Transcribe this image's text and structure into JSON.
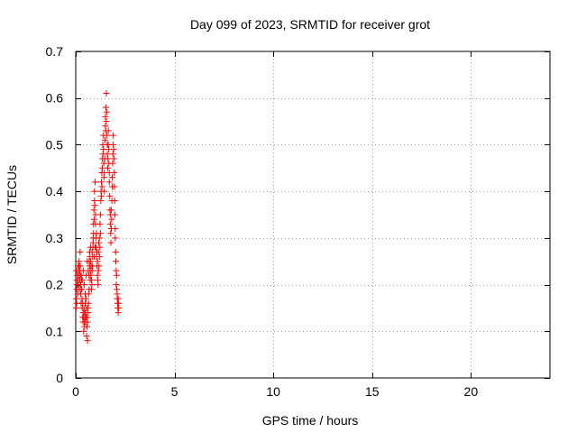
{
  "chart_data": {
    "type": "scatter",
    "title": "Day 099 of 2023, SRMTID for receiver grot",
    "xlabel": "GPS time / hours",
    "ylabel": "SRMTID / TECUs",
    "xlim": [
      0,
      24
    ],
    "ylim": [
      0,
      0.7
    ],
    "xticks": [
      0,
      5,
      10,
      15,
      20
    ],
    "yticks": [
      0,
      0.1,
      0.2,
      0.3,
      0.4,
      0.5,
      0.6,
      0.7
    ],
    "xtick_labels": [
      "0",
      "5",
      "10",
      "15",
      "20"
    ],
    "ytick_labels": [
      "0",
      "0.1",
      "0.2",
      "0.3",
      "0.4",
      "0.5",
      "0.6",
      "0.7"
    ],
    "grid": true,
    "marker": "plus",
    "color": "#ff0000",
    "series": [
      {
        "name": "SRMTID",
        "x": [
          0.02,
          0.03,
          0.05,
          0.05,
          0.07,
          0.08,
          0.1,
          0.1,
          0.12,
          0.13,
          0.15,
          0.15,
          0.17,
          0.18,
          0.2,
          0.2,
          0.22,
          0.23,
          0.25,
          0.25,
          0.27,
          0.28,
          0.3,
          0.3,
          0.32,
          0.33,
          0.35,
          0.35,
          0.37,
          0.38,
          0.4,
          0.4,
          0.42,
          0.43,
          0.45,
          0.45,
          0.47,
          0.48,
          0.5,
          0.5,
          0.52,
          0.53,
          0.55,
          0.55,
          0.57,
          0.58,
          0.6,
          0.6,
          0.62,
          0.63,
          0.65,
          0.65,
          0.67,
          0.68,
          0.7,
          0.7,
          0.72,
          0.73,
          0.75,
          0.75,
          0.77,
          0.78,
          0.8,
          0.8,
          0.82,
          0.83,
          0.85,
          0.85,
          0.87,
          0.88,
          0.9,
          0.9,
          0.92,
          0.93,
          0.95,
          0.95,
          0.97,
          0.98,
          1.0,
          1.0,
          1.02,
          1.03,
          1.05,
          1.05,
          1.07,
          1.08,
          1.1,
          1.1,
          1.12,
          1.13,
          1.15,
          1.15,
          1.17,
          1.18,
          1.2,
          1.2,
          1.22,
          1.23,
          1.25,
          1.25,
          1.27,
          1.28,
          1.3,
          1.3,
          1.32,
          1.33,
          1.35,
          1.35,
          1.37,
          1.38,
          1.4,
          1.4,
          1.42,
          1.43,
          1.45,
          1.45,
          1.47,
          1.48,
          1.5,
          1.5,
          1.52,
          1.53,
          1.55,
          1.55,
          1.57,
          1.58,
          1.6,
          1.6,
          1.62,
          1.63,
          1.65,
          1.65,
          1.67,
          1.68,
          1.7,
          1.7,
          1.72,
          1.73,
          1.75,
          1.75,
          1.77,
          1.78,
          1.8,
          1.8,
          1.82,
          1.83,
          1.85,
          1.85,
          1.87,
          1.88,
          1.9,
          1.9,
          1.92,
          1.93,
          1.95,
          1.95,
          1.97,
          1.98,
          2.0,
          2.0,
          2.02,
          2.03,
          2.05,
          2.05,
          2.07,
          2.08,
          2.1,
          2.1,
          2.12,
          2.13,
          2.15,
          2.15,
          2.17,
          2.18,
          0.03,
          0.08,
          0.13,
          0.18,
          0.23,
          0.28,
          0.33,
          0.38,
          0.43,
          0.48,
          0.53,
          0.58,
          0.63,
          0.68,
          0.73,
          0.78,
          0.83,
          0.88,
          0.93,
          0.98
        ],
        "y": [
          0.15,
          0.17,
          0.19,
          0.16,
          0.2,
          0.22,
          0.21,
          0.18,
          0.24,
          0.23,
          0.2,
          0.22,
          0.25,
          0.19,
          0.21,
          0.23,
          0.27,
          0.24,
          0.18,
          0.2,
          0.16,
          0.22,
          0.19,
          0.21,
          0.17,
          0.15,
          0.13,
          0.16,
          0.12,
          0.14,
          0.1,
          0.13,
          0.15,
          0.12,
          0.14,
          0.11,
          0.13,
          0.16,
          0.12,
          0.14,
          0.17,
          0.13,
          0.15,
          0.09,
          0.11,
          0.13,
          0.08,
          0.12,
          0.15,
          0.14,
          0.18,
          0.16,
          0.22,
          0.25,
          0.27,
          0.24,
          0.26,
          0.23,
          0.28,
          0.25,
          0.22,
          0.24,
          0.21,
          0.19,
          0.2,
          0.23,
          0.26,
          0.24,
          0.28,
          0.3,
          0.33,
          0.31,
          0.36,
          0.34,
          0.38,
          0.4,
          0.37,
          0.42,
          0.35,
          0.33,
          0.3,
          0.28,
          0.26,
          0.31,
          0.27,
          0.24,
          0.22,
          0.25,
          0.21,
          0.2,
          0.23,
          0.27,
          0.29,
          0.24,
          0.26,
          0.3,
          0.28,
          0.33,
          0.35,
          0.31,
          0.38,
          0.4,
          0.42,
          0.39,
          0.44,
          0.41,
          0.47,
          0.45,
          0.5,
          0.48,
          0.52,
          0.49,
          0.46,
          0.43,
          0.4,
          0.44,
          0.47,
          0.51,
          0.54,
          0.56,
          0.53,
          0.58,
          0.55,
          0.61,
          0.57,
          0.52,
          0.5,
          0.48,
          0.45,
          0.47,
          0.5,
          0.53,
          0.49,
          0.46,
          0.44,
          0.42,
          0.39,
          0.36,
          0.33,
          0.35,
          0.31,
          0.29,
          0.32,
          0.36,
          0.34,
          0.38,
          0.41,
          0.43,
          0.46,
          0.48,
          0.5,
          0.52,
          0.49,
          0.47,
          0.44,
          0.41,
          0.38,
          0.35,
          0.32,
          0.3,
          0.27,
          0.25,
          0.23,
          0.2,
          0.22,
          0.19,
          0.17,
          0.18,
          0.16,
          0.15,
          0.17,
          0.14,
          0.16,
          0.15,
          0.23,
          0.21,
          0.2,
          0.24,
          0.22,
          0.19,
          0.21,
          0.23,
          0.2,
          0.18,
          0.22,
          0.25,
          0.23,
          0.19,
          0.21,
          0.24,
          0.27,
          0.29,
          0.26,
          0.28
        ]
      }
    ]
  }
}
